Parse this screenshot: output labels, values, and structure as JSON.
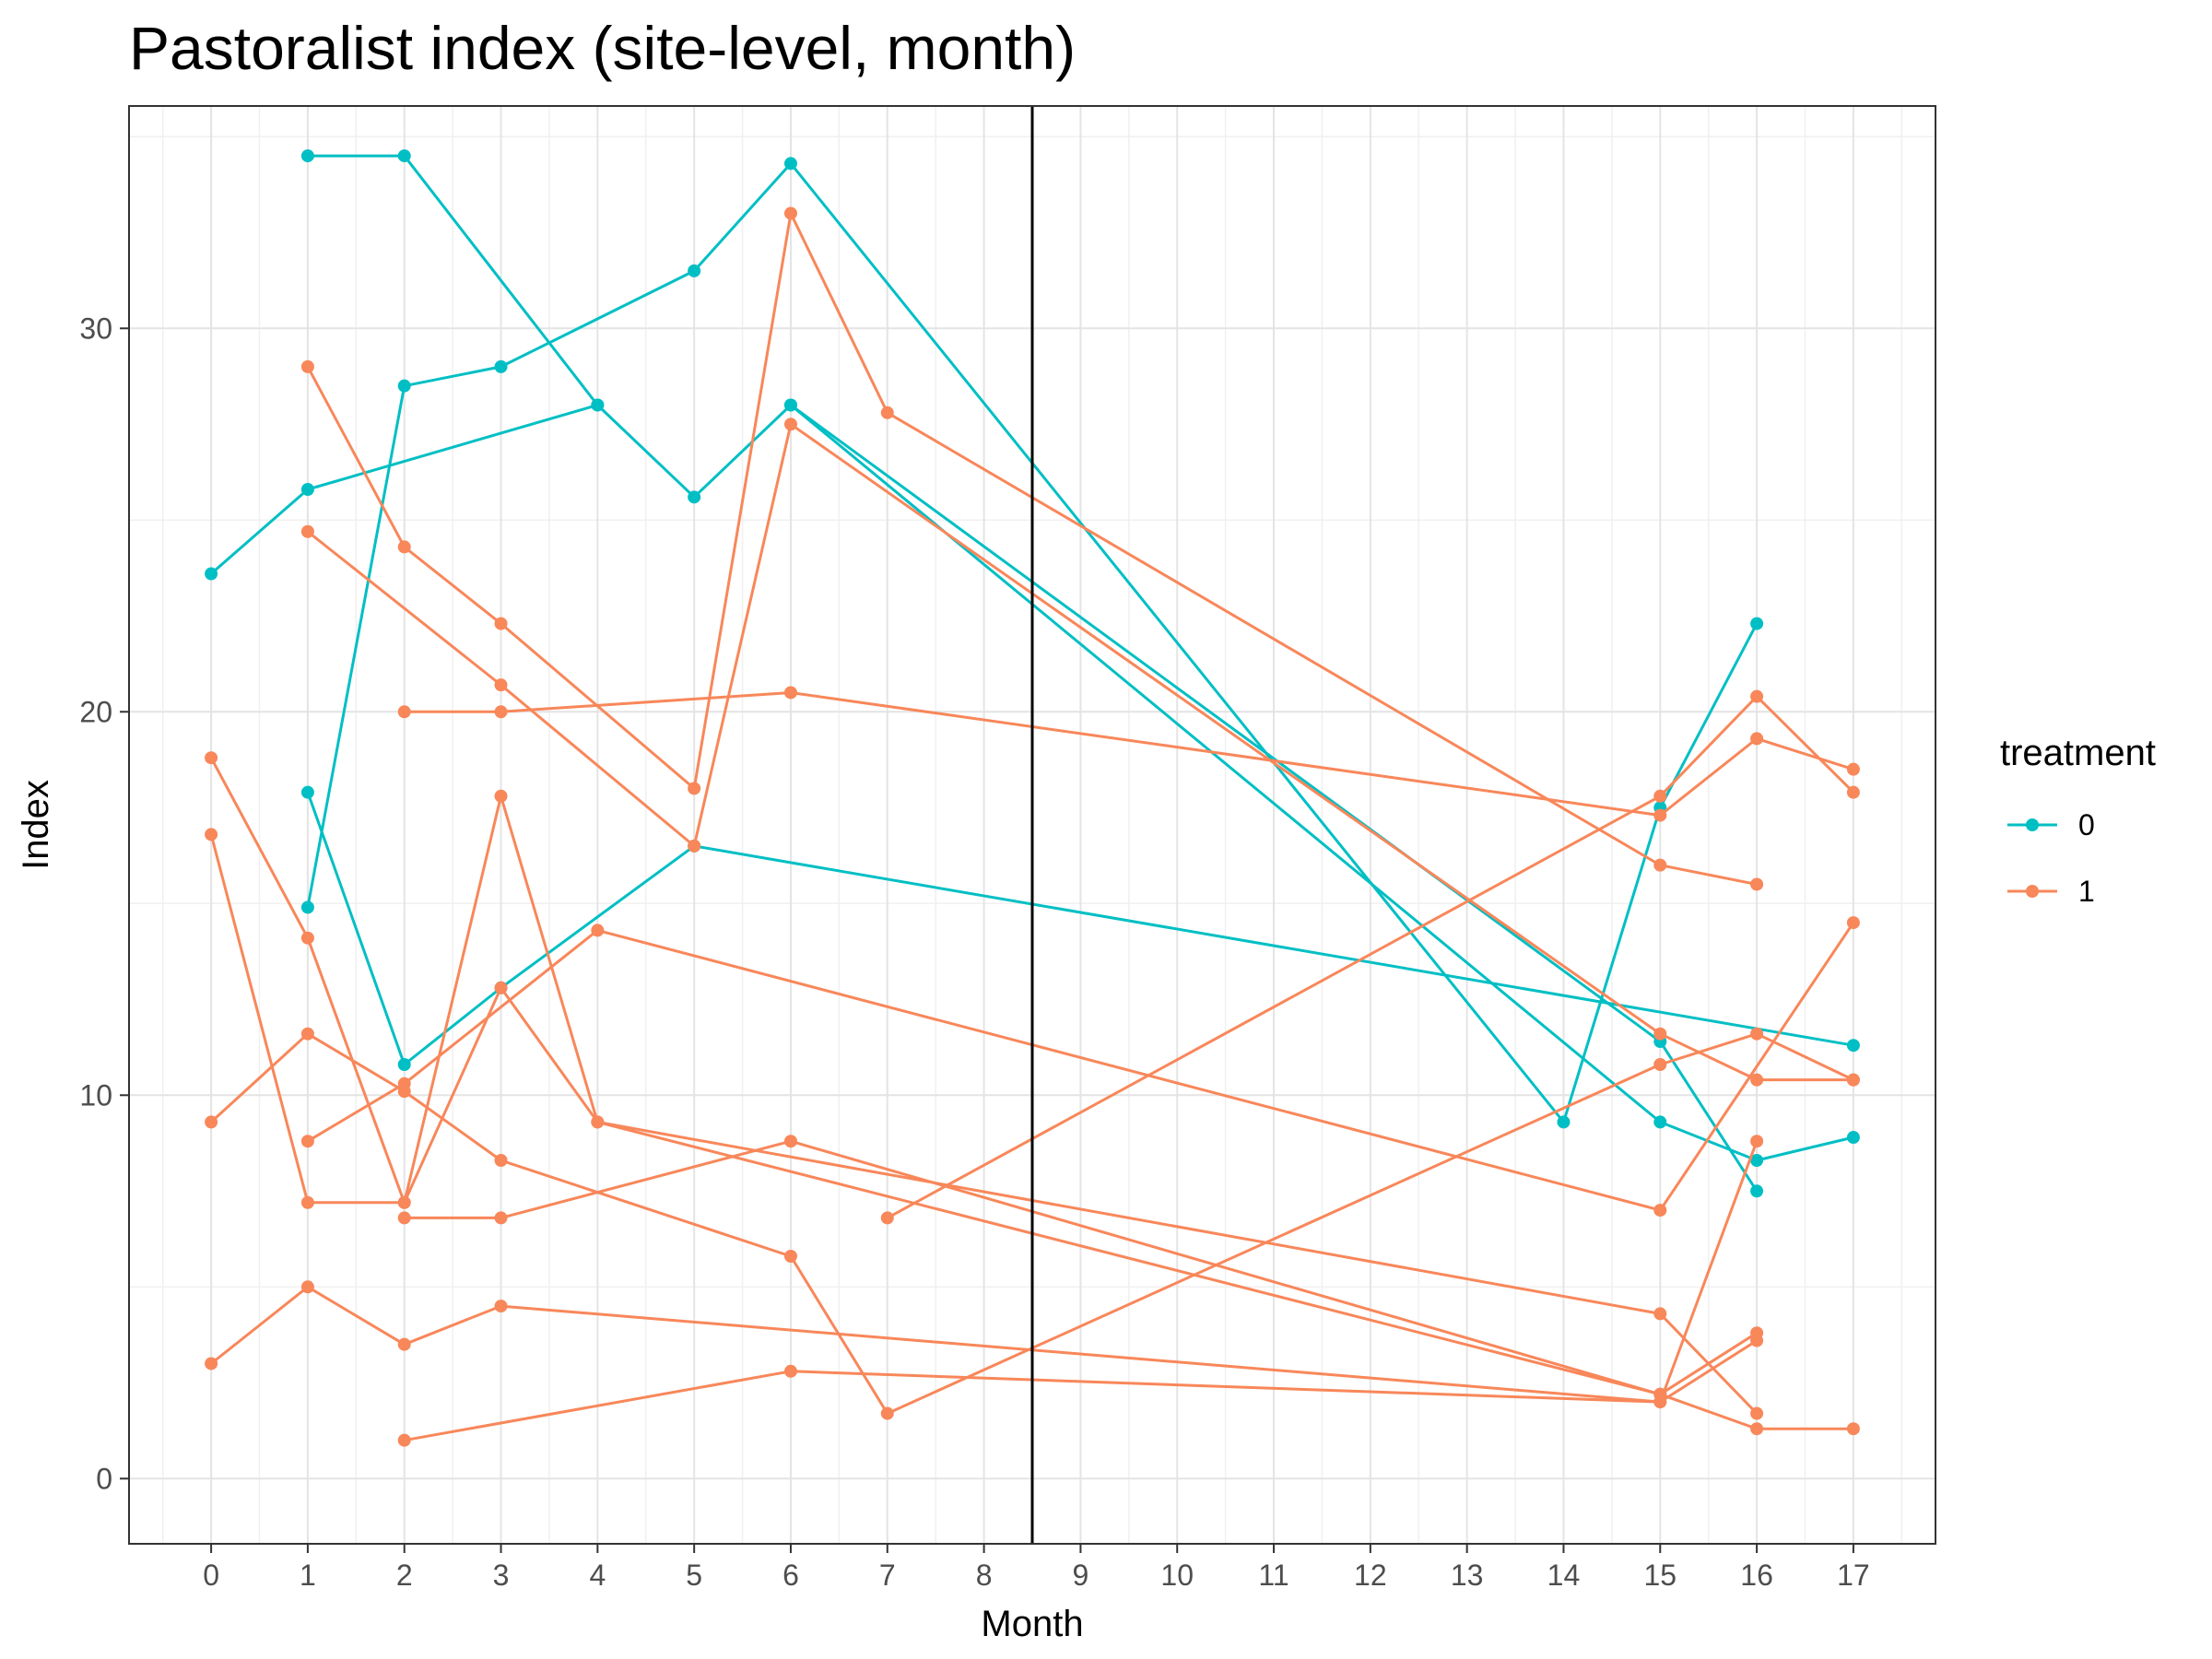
{
  "chart_data": {
    "type": "line",
    "title": "Pastoralist index (site-level, month)",
    "xlabel": "Month",
    "ylabel": "Index",
    "xlim": [
      -0.85,
      17.85
    ],
    "ylim": [
      -1.7,
      35.8
    ],
    "x_ticks": [
      "0",
      "1",
      "2",
      "3",
      "4",
      "5",
      "6",
      "7",
      "8",
      "9",
      "10",
      "11",
      "12",
      "13",
      "14",
      "15",
      "16",
      "17"
    ],
    "y_ticks": [
      "0",
      "10",
      "20",
      "30"
    ],
    "y_tick_values": [
      0,
      10,
      20,
      30
    ],
    "vline_x": 8.5,
    "grid": true,
    "legend": {
      "title": "treatment",
      "position": "right",
      "entries": [
        {
          "label": "0",
          "color": "#00BFC4"
        },
        {
          "label": "1",
          "color": "#F8875A"
        }
      ]
    },
    "series": [
      {
        "group": "0",
        "x": [
          1,
          2,
          4,
          5,
          6,
          15,
          16
        ],
        "y": [
          34.5,
          34.5,
          28.0,
          25.6,
          28.0,
          11.4,
          7.5
        ]
      },
      {
        "group": "0",
        "x": [
          0,
          1,
          4
        ],
        "y": [
          23.6,
          25.8,
          28.0
        ]
      },
      {
        "group": "0",
        "x": [
          1,
          2,
          3,
          5,
          6,
          14,
          15,
          16
        ],
        "y": [
          14.9,
          28.5,
          29.0,
          31.5,
          34.3,
          9.3,
          17.5,
          22.3
        ]
      },
      {
        "group": "0",
        "x": [
          1,
          2,
          3,
          5,
          17
        ],
        "y": [
          17.9,
          10.8,
          12.8,
          16.5,
          11.3
        ]
      },
      {
        "group": "0",
        "x": [
          6,
          15,
          16,
          17
        ],
        "y": [
          28.0,
          9.3,
          8.3,
          8.9
        ]
      },
      {
        "group": "1",
        "x": [
          1,
          2,
          3,
          5,
          6,
          7,
          15,
          16
        ],
        "y": [
          29.0,
          24.3,
          22.3,
          18.0,
          33.0,
          27.8,
          16.0,
          15.5
        ]
      },
      {
        "group": "1",
        "x": [
          1,
          3,
          5,
          6,
          15,
          16,
          17
        ],
        "y": [
          24.7,
          20.7,
          16.5,
          27.5,
          11.6,
          10.4,
          10.4
        ]
      },
      {
        "group": "1",
        "x": [
          2,
          3,
          6,
          15,
          16,
          17
        ],
        "y": [
          20.0,
          20.0,
          20.5,
          17.3,
          19.3,
          18.5
        ]
      },
      {
        "group": "1",
        "x": [
          0,
          1,
          2,
          3,
          4,
          15,
          16
        ],
        "y": [
          18.8,
          14.1,
          7.2,
          17.8,
          9.3,
          2.2,
          3.8
        ]
      },
      {
        "group": "1",
        "x": [
          0,
          1,
          2,
          3,
          4,
          15,
          16
        ],
        "y": [
          16.8,
          7.2,
          7.2,
          12.8,
          9.3,
          4.3,
          1.7
        ]
      },
      {
        "group": "1",
        "x": [
          0,
          1,
          2,
          3,
          6,
          7,
          15,
          16,
          17
        ],
        "y": [
          9.3,
          11.6,
          10.1,
          8.3,
          5.8,
          1.7,
          10.8,
          11.6,
          10.4
        ]
      },
      {
        "group": "1",
        "x": [
          1,
          2,
          4,
          15,
          17
        ],
        "y": [
          8.8,
          10.3,
          14.3,
          7.0,
          14.5
        ]
      },
      {
        "group": "1",
        "x": [
          2,
          3,
          6,
          15,
          16,
          17
        ],
        "y": [
          6.8,
          6.8,
          8.8,
          2.2,
          1.3,
          1.3
        ]
      },
      {
        "group": "1",
        "x": [
          0,
          1,
          2,
          3,
          15,
          16
        ],
        "y": [
          3.0,
          5.0,
          3.5,
          4.5,
          2.0,
          3.6
        ]
      },
      {
        "group": "1",
        "x": [
          2,
          6,
          15,
          16
        ],
        "y": [
          1.0,
          2.8,
          2.0,
          8.8
        ]
      },
      {
        "group": "1",
        "x": [
          7,
          15,
          16,
          17
        ],
        "y": [
          6.8,
          17.8,
          20.4,
          17.9
        ]
      }
    ]
  }
}
